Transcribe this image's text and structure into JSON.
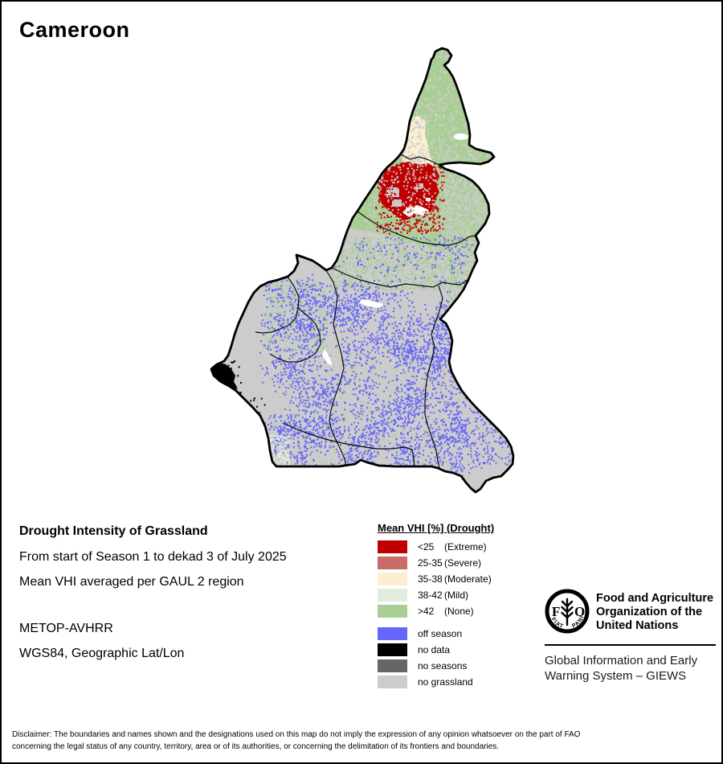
{
  "page": {
    "title": "Cameroon"
  },
  "info": {
    "heading": "Drought Intensity of Grassland",
    "period": "From start of Season 1 to dekad 3 of July 2025",
    "aggregation": "Mean VHI averaged per GAUL 2 region",
    "sensor": "METOP-AVHRR",
    "projection": "WGS84, Geographic Lat/Lon"
  },
  "legend": {
    "title": "Mean VHI [%] (Drought)",
    "classes": [
      {
        "range": "<25",
        "label": "(Extreme)",
        "color": "#C00000"
      },
      {
        "range": "25-35",
        "label": "(Severe)",
        "color": "#C96B66"
      },
      {
        "range": "35-38",
        "label": "(Moderate)",
        "color": "#FCEFD1"
      },
      {
        "range": "38-42",
        "label": "(Mild)",
        "color": "#E0EDDC"
      },
      {
        "range": ">42",
        "label": "(None)",
        "color": "#A9CE94"
      }
    ],
    "extras": [
      {
        "label": "off season",
        "color": "#6666FA"
      },
      {
        "label": "no data",
        "color": "#000000"
      },
      {
        "label": "no seasons",
        "color": "#666666"
      },
      {
        "label": "no grassland",
        "color": "#CCCCCC"
      }
    ]
  },
  "footer": {
    "org_lines": [
      "Food and Agriculture",
      "Organization of the",
      "United Nations"
    ],
    "giews_lines": [
      "Global Information and Early",
      "Warning System – GIEWS"
    ],
    "logo": {
      "f": "F",
      "o": "O",
      "motto_left": "FIAT",
      "motto_right": "PANIS"
    }
  },
  "disclaimer": {
    "line1": "Disclaimer: The boundaries and names shown and the designations used on this map do not imply the expression of any opinion whatsoever on the part of FAO",
    "line2": "concerning the legal status of any country, territory, area or of its authorities, or concerning the delimitation of its frontiers and boundaries."
  }
}
